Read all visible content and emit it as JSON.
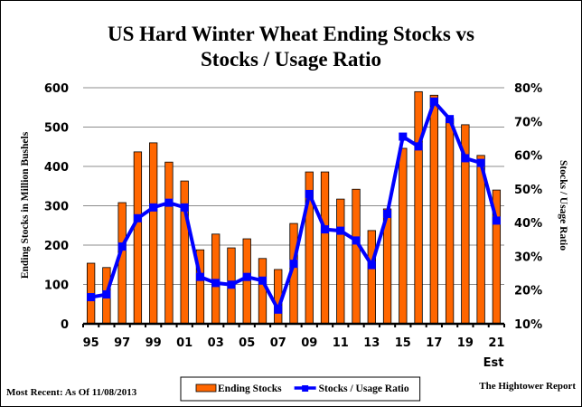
{
  "chart_data": {
    "type": "bar",
    "title": "US Hard Winter Wheat Ending Stocks vs Stocks / Usage Ratio",
    "title_lines": [
      "US Hard Winter Wheat Ending Stocks vs",
      "Stocks / Usage Ratio"
    ],
    "categories": [
      "95",
      "96",
      "97",
      "98",
      "99",
      "00",
      "01",
      "02",
      "03",
      "04",
      "05",
      "06",
      "07",
      "08",
      "09",
      "10",
      "11",
      "12",
      "13",
      "14",
      "15",
      "16",
      "17",
      "18",
      "19",
      "20",
      "21"
    ],
    "x_tick_labels": [
      "95",
      "97",
      "99",
      "01",
      "03",
      "05",
      "07",
      "09",
      "11",
      "13",
      "15",
      "17",
      "19",
      "21"
    ],
    "x_extra_label": "Est",
    "series": [
      {
        "name": "Ending Stocks",
        "type": "bar",
        "axis": "left",
        "color": "#FF6600",
        "values": [
          154,
          143,
          308,
          437,
          460,
          411,
          363,
          188,
          228,
          193,
          216,
          166,
          138,
          255,
          386,
          386,
          317,
          342,
          237,
          292,
          446,
          590,
          581,
          522,
          506,
          428,
          340
        ]
      },
      {
        "name": "Stocks / Usage Ratio",
        "type": "line",
        "axis": "right",
        "color": "#0000FF",
        "values": [
          17.9,
          18.7,
          32.9,
          41.3,
          44.5,
          45.9,
          44.5,
          23.9,
          22.1,
          21.6,
          23.9,
          22.8,
          14.2,
          27.8,
          48.5,
          38.0,
          37.6,
          34.7,
          27.4,
          42.6,
          65.5,
          62.6,
          75.9,
          70.7,
          59.1,
          57.7,
          40.6
        ]
      }
    ],
    "ylabel": "Ending Stocks in Million Bushels",
    "ylim": [
      0,
      600
    ],
    "y_ticks": [
      0,
      100,
      200,
      300,
      400,
      500,
      600
    ],
    "y_tick_labels": [
      "0",
      "100",
      "200",
      "300",
      "400",
      "500",
      "600"
    ],
    "y2label": "Stocks / Usage Ratio",
    "y2lim": [
      10,
      80
    ],
    "y2_ticks": [
      10,
      20,
      30,
      40,
      50,
      60,
      70,
      80
    ],
    "y2_tick_labels": [
      "10%",
      "20%",
      "30%",
      "40%",
      "50%",
      "60%",
      "70%",
      "80%"
    ],
    "grid": true,
    "legend_position": "bottom-center",
    "legend": [
      "Ending Stocks",
      "Stocks / Usage Ratio"
    ],
    "footnote_left": "Most Recent: As Of 11/08/2013",
    "footnote_right": "The Hightower Report"
  }
}
